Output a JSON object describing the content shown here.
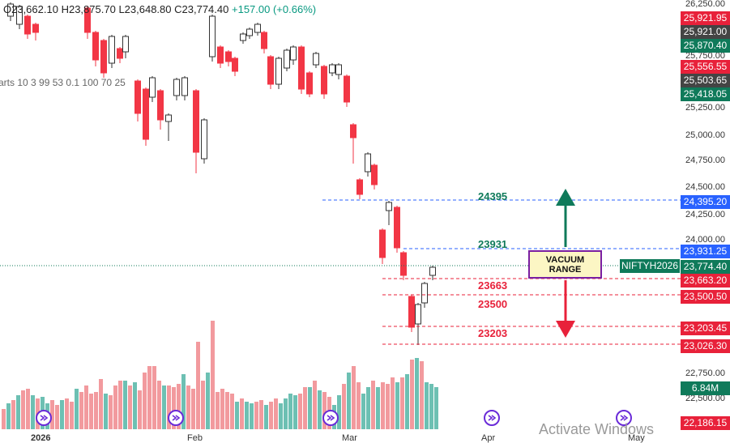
{
  "ohlc": {
    "open": "O23,662.10",
    "high": "H23,875.70",
    "low": "L23,648.80",
    "close": "C23,774.40",
    "change": "+157.00 (+0.66%)"
  },
  "indicator_text": "arts 10 3 99 53 0.1 100 70 25",
  "watermark": "Activate Windows",
  "symbol_tag": "NIFTYH2026",
  "vacuum_label_1": "VACUUM",
  "vacuum_label_2": "RANGE",
  "volume_tag": "6.84M",
  "chart_data": {
    "type": "candlestick",
    "y_axis_ticks": [
      "26,250.00",
      "25,750.00",
      "25,250.00",
      "25,000.00",
      "24,750.00",
      "24,500.00",
      "24,250.00",
      "24,000.00",
      "22,750.00",
      "22,500.00"
    ],
    "x_axis_labels": [
      "2026",
      "Feb",
      "Mar",
      "Apr",
      "May"
    ],
    "price_tags": [
      {
        "label": "25,921.95",
        "color": "#e8213a"
      },
      {
        "label": "25,921.00",
        "color": "#444444"
      },
      {
        "label": "25,870.40",
        "color": "#0f7a5a"
      },
      {
        "label": "25,556.55",
        "color": "#e8213a"
      },
      {
        "label": "25,503.65",
        "color": "#444444"
      },
      {
        "label": "25,418.05",
        "color": "#0f7a5a"
      },
      {
        "label": "24,395.20",
        "color": "#2962ff"
      },
      {
        "label": "23,931.25",
        "color": "#2962ff"
      },
      {
        "label": "23,774.40",
        "color": "#0f7a5a"
      },
      {
        "label": "23,663.20",
        "color": "#e8213a"
      },
      {
        "label": "23,500.50",
        "color": "#e8213a"
      },
      {
        "label": "23,203.45",
        "color": "#e8213a"
      },
      {
        "label": "23,026.30",
        "color": "#e8213a"
      },
      {
        "label": "22,186.15",
        "color": "#e8213a"
      }
    ],
    "levels": [
      {
        "label": "24395",
        "color": "#0f7a5a"
      },
      {
        "label": "23931",
        "color": "#0f7a5a"
      },
      {
        "label": "23663",
        "color": "#e8213a"
      },
      {
        "label": "23500",
        "color": "#e8213a"
      },
      {
        "label": "23203",
        "color": "#e8213a"
      }
    ],
    "up_color": "#089981",
    "down_color": "#f23645"
  }
}
